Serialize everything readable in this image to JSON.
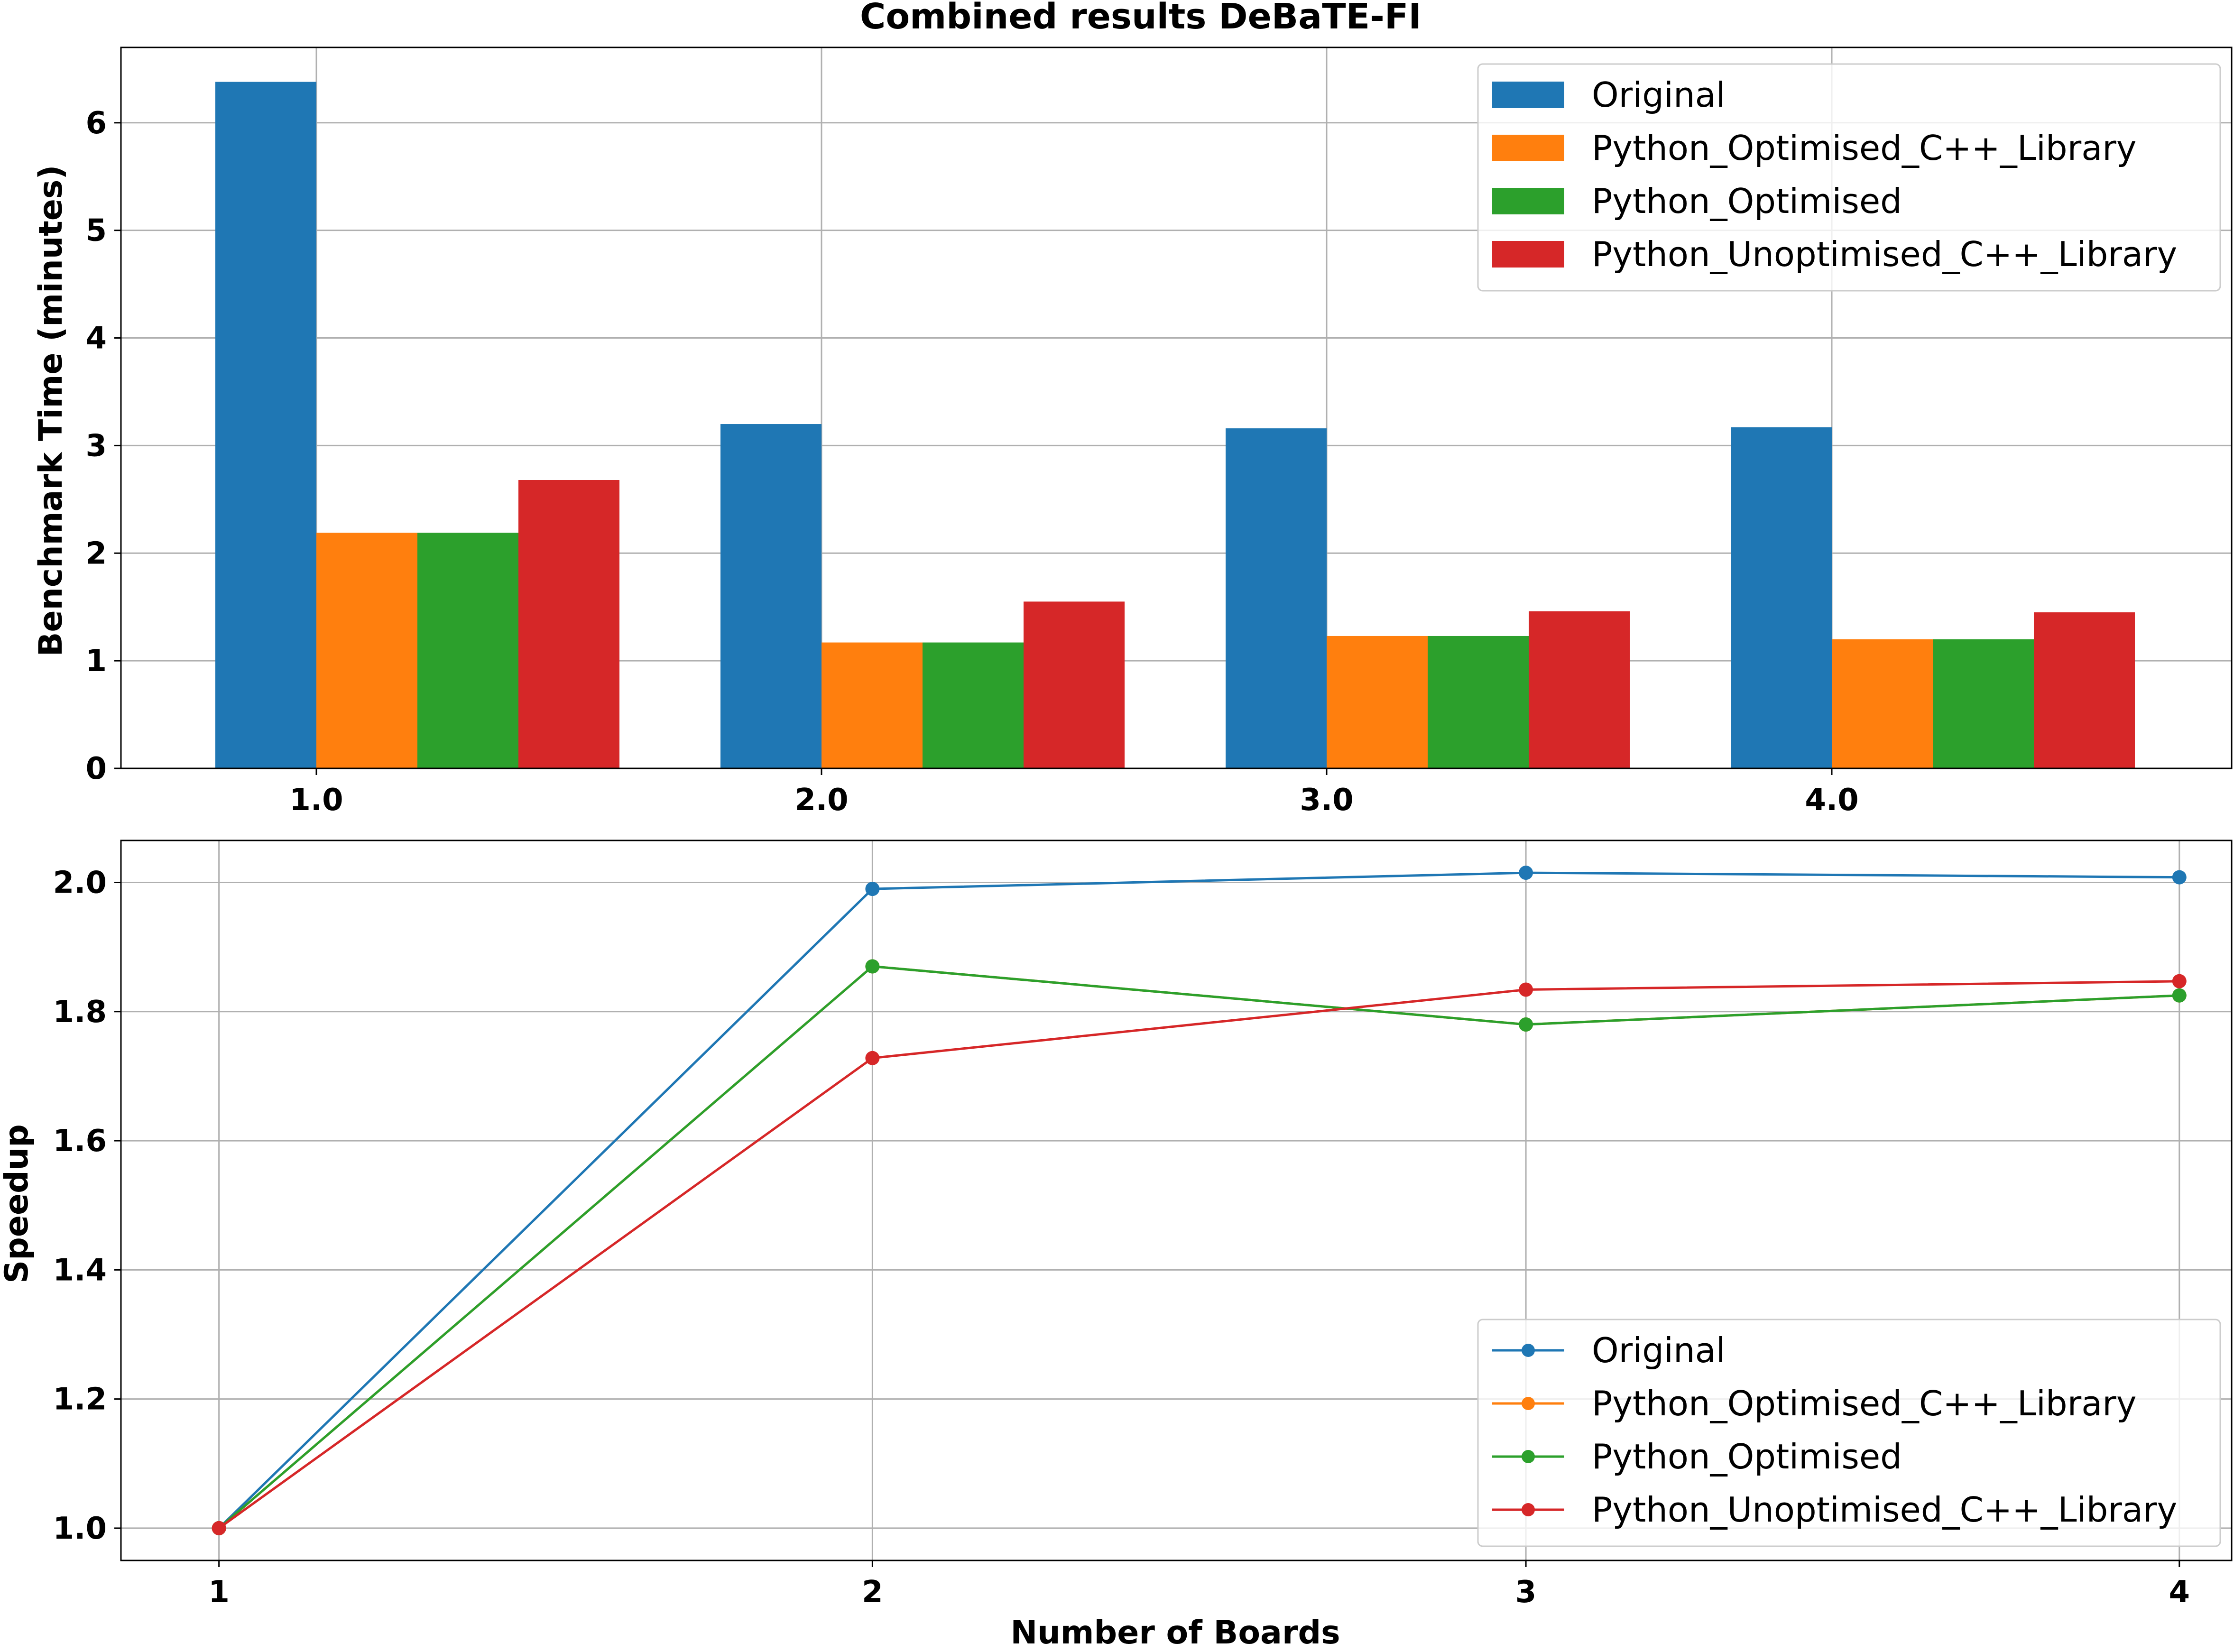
{
  "figure": {
    "title": "Combined results DeBaTE-FI"
  },
  "chart_data": [
    {
      "type": "bar",
      "xlabel": "",
      "ylabel": "Benchmark Time (minutes)",
      "categories": [
        "1.0",
        "2.0",
        "3.0",
        "4.0"
      ],
      "ylim": [
        0,
        6.7
      ],
      "yticks": [
        "0",
        "1",
        "2",
        "3",
        "4",
        "5",
        "6"
      ],
      "grid": true,
      "legend_position": "top-right",
      "series": [
        {
          "name": "Original",
          "color": "#1f77b4",
          "values": [
            6.38,
            3.2,
            3.16,
            3.17
          ]
        },
        {
          "name": "Python_Optimised_C++_Library",
          "color": "#ff7f0e",
          "values": [
            2.19,
            1.17,
            1.23,
            1.2
          ]
        },
        {
          "name": "Python_Optimised",
          "color": "#2ca02c",
          "values": [
            2.19,
            1.17,
            1.23,
            1.2
          ]
        },
        {
          "name": "Python_Unoptimised_C++_Library",
          "color": "#d62728",
          "values": [
            2.68,
            1.55,
            1.46,
            1.45
          ]
        }
      ]
    },
    {
      "type": "line",
      "xlabel": "Number of Boards",
      "ylabel": "Speedup",
      "x": [
        1,
        2,
        3,
        4
      ],
      "xticks": [
        "1",
        "2",
        "3",
        "4"
      ],
      "xlim": [
        0.85,
        4.08
      ],
      "ylim": [
        0.95,
        2.065
      ],
      "yticks": [
        "1.0",
        "1.2",
        "1.4",
        "1.6",
        "1.8",
        "2.0"
      ],
      "grid": true,
      "legend_position": "bottom-right",
      "series": [
        {
          "name": "Original",
          "color": "#1f77b4",
          "values": [
            1.0,
            1.99,
            2.015,
            2.008
          ]
        },
        {
          "name": "Python_Optimised_C++_Library",
          "color": "#ff7f0e",
          "values": [
            1.0,
            1.87,
            1.78,
            1.825
          ]
        },
        {
          "name": "Python_Optimised",
          "color": "#2ca02c",
          "values": [
            1.0,
            1.87,
            1.78,
            1.825
          ]
        },
        {
          "name": "Python_Unoptimised_C++_Library",
          "color": "#d62728",
          "values": [
            1.0,
            1.728,
            1.834,
            1.847
          ]
        }
      ]
    }
  ]
}
